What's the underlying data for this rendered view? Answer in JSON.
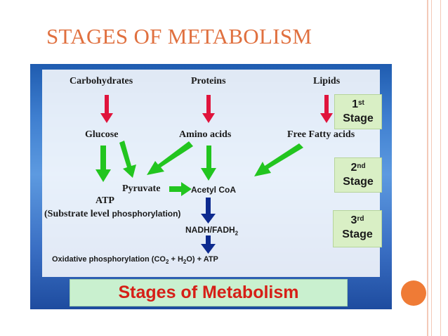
{
  "slide": {
    "title": "STAGES OF METABOLISM"
  },
  "diagram": {
    "sources": {
      "carbohydrates": "Carbohydrates",
      "proteins": "Proteins",
      "lipids": "Lipids"
    },
    "first_products": {
      "glucose": "Glucose",
      "amino_acids": "Amino acids",
      "free_fatty_acids": "Free Fatty acids"
    },
    "intermediates": {
      "pyruvate": "Pyruvate",
      "acetyl_coa": "Acetyl CoA",
      "atp": "ATP",
      "substrate_level_prefix": "(Substrate level ",
      "substrate_level_suffix": "phosphorylation)",
      "nadh_fadh_text": "NADH/FADH",
      "nadh_fadh_sub": "2"
    },
    "oxidative": {
      "prefix": "Oxidative phosphorylation (CO",
      "co2_sub": "2",
      "plus_h": " + H",
      "h2o_sub": "2",
      "suffix": "O)  + ATP"
    },
    "stages": [
      {
        "num": "1",
        "sup": "st",
        "word": "Stage"
      },
      {
        "num": "2",
        "sup": "nd",
        "word": "Stage"
      },
      {
        "num": "3",
        "sup": "rd",
        "word": "Stage"
      }
    ],
    "banner": "Stages of Metabolism"
  },
  "colors": {
    "title": "#e0703f",
    "red_arrow": "#e0143c",
    "green_arrow": "#22c51f",
    "blue_arrow": "#0d2a8f",
    "stage_box": "#d9efc5",
    "banner_bg": "#c9f0cf",
    "banner_text": "#d61f17",
    "accent_dot": "#ef7b36"
  }
}
